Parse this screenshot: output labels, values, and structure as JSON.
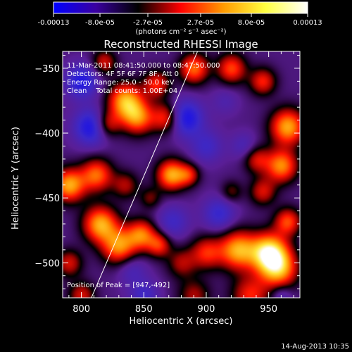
{
  "colorbar": {
    "ticks": [
      "-0.00013",
      "-8.0e-05",
      "-2.7e-05",
      "2.7e-05",
      "8.0e-05",
      "0.00013"
    ],
    "units": "(photons cm⁻² s⁻¹ asec⁻²)",
    "colors": [
      "#0000ff",
      "#3a00a0",
      "#000000",
      "#ff0000",
      "#ff9900",
      "#ffff40",
      "#ffffff"
    ]
  },
  "chart_data": {
    "type": "heatmap",
    "title": "Reconstructed RHESSI Image",
    "xlabel": "Heliocentric X (arcsec)",
    "ylabel": "Heliocentric Y (arcsec)",
    "xlim": [
      785,
      975
    ],
    "ylim": [
      -527,
      -337
    ],
    "xticks": [
      800,
      850,
      900,
      950
    ],
    "yticks": [
      -350,
      -400,
      -450,
      -500
    ],
    "xtick_labels": [
      "800",
      "850",
      "900",
      "950"
    ],
    "ytick_labels": [
      "−350",
      "−400",
      "−450",
      "−500"
    ],
    "value_range": [
      -0.00013,
      0.00013
    ],
    "annotations": [
      "11-Mar-2011 08:41:50.000 to 08:47:50.000",
      "Detectors: 4F 5F 6F 7F 8F, Att 0",
      "Energy Range: 25.0 - 50.0 keV",
      "Clean    Total counts: 1.00E+04"
    ],
    "peak_label": "Position of Peak = [947,-492]",
    "peak": [
      947,
      -492
    ],
    "limb_line": [
      [
        808,
        -527
      ],
      [
        893,
        -337
      ]
    ],
    "blobs": [
      {
        "x": 950,
        "y": -492,
        "v": 0.00013,
        "r": 14
      },
      {
        "x": 925,
        "y": -490,
        "v": 0.0001,
        "r": 14
      },
      {
        "x": 958,
        "y": -505,
        "v": 9e-05,
        "r": 14
      },
      {
        "x": 965,
        "y": -468,
        "v": 7e-05,
        "r": 10
      },
      {
        "x": 900,
        "y": -492,
        "v": 6e-05,
        "r": 12
      },
      {
        "x": 880,
        "y": -500,
        "v": 4e-05,
        "r": 11
      },
      {
        "x": 935,
        "y": -525,
        "v": 6e-05,
        "r": 14
      },
      {
        "x": 890,
        "y": -525,
        "v": 4e-05,
        "r": 12
      },
      {
        "x": 815,
        "y": -470,
        "v": 0.0001,
        "r": 13
      },
      {
        "x": 830,
        "y": -487,
        "v": 9e-05,
        "r": 13
      },
      {
        "x": 848,
        "y": -478,
        "v": 8e-05,
        "r": 11
      },
      {
        "x": 862,
        "y": -486,
        "v": 6e-05,
        "r": 9
      },
      {
        "x": 790,
        "y": -440,
        "v": 0.0001,
        "r": 12
      },
      {
        "x": 790,
        "y": -500,
        "v": 5e-05,
        "r": 10
      },
      {
        "x": 812,
        "y": -432,
        "v": 8e-05,
        "r": 12
      },
      {
        "x": 835,
        "y": -440,
        "v": 4e-05,
        "r": 10
      },
      {
        "x": 872,
        "y": -432,
        "v": 0.0001,
        "r": 11
      },
      {
        "x": 886,
        "y": -432,
        "v": 5e-05,
        "r": 8
      },
      {
        "x": 855,
        "y": -450,
        "v": 3e-05,
        "r": 8
      },
      {
        "x": 835,
        "y": -375,
        "v": 0.0001,
        "r": 13
      },
      {
        "x": 845,
        "y": -388,
        "v": 8e-05,
        "r": 12
      },
      {
        "x": 820,
        "y": -393,
        "v": 6e-05,
        "r": 10
      },
      {
        "x": 868,
        "y": -388,
        "v": 7e-05,
        "r": 11
      },
      {
        "x": 860,
        "y": -362,
        "v": 6e-05,
        "r": 10
      },
      {
        "x": 890,
        "y": -350,
        "v": 8e-05,
        "r": 11
      },
      {
        "x": 920,
        "y": -350,
        "v": 7e-05,
        "r": 11
      },
      {
        "x": 945,
        "y": -360,
        "v": 6e-05,
        "r": 10
      },
      {
        "x": 965,
        "y": -395,
        "v": 0.0001,
        "r": 13
      },
      {
        "x": 960,
        "y": -425,
        "v": 9e-05,
        "r": 12
      },
      {
        "x": 940,
        "y": -420,
        "v": 5e-05,
        "r": 10
      },
      {
        "x": 945,
        "y": -445,
        "v": 5e-05,
        "r": 10
      },
      {
        "x": 920,
        "y": -445,
        "v": 3e-05,
        "r": 8
      },
      {
        "x": 818,
        "y": -345,
        "v": 5e-05,
        "r": 9
      },
      {
        "x": 800,
        "y": -525,
        "v": 5e-05,
        "r": 10
      },
      {
        "x": 808,
        "y": -395,
        "v": -9e-05,
        "r": 13
      },
      {
        "x": 800,
        "y": -360,
        "v": -8e-05,
        "r": 12
      },
      {
        "x": 883,
        "y": -388,
        "v": -9e-05,
        "r": 13
      },
      {
        "x": 900,
        "y": -410,
        "v": -5e-05,
        "r": 12
      },
      {
        "x": 873,
        "y": -468,
        "v": -5e-05,
        "r": 12
      },
      {
        "x": 910,
        "y": -462,
        "v": -6e-05,
        "r": 12
      },
      {
        "x": 840,
        "y": -505,
        "v": -4e-05,
        "r": 11
      },
      {
        "x": 850,
        "y": -525,
        "v": -5e-05,
        "r": 11
      },
      {
        "x": 930,
        "y": -410,
        "v": -4e-05,
        "r": 10
      },
      {
        "x": 960,
        "y": -525,
        "v": -4e-05,
        "r": 8
      },
      {
        "x": 915,
        "y": -375,
        "v": -3e-05,
        "r": 10
      }
    ],
    "background_value": -2.6e-05
  },
  "footer": {
    "date": "14-Aug-2013 10:35"
  }
}
